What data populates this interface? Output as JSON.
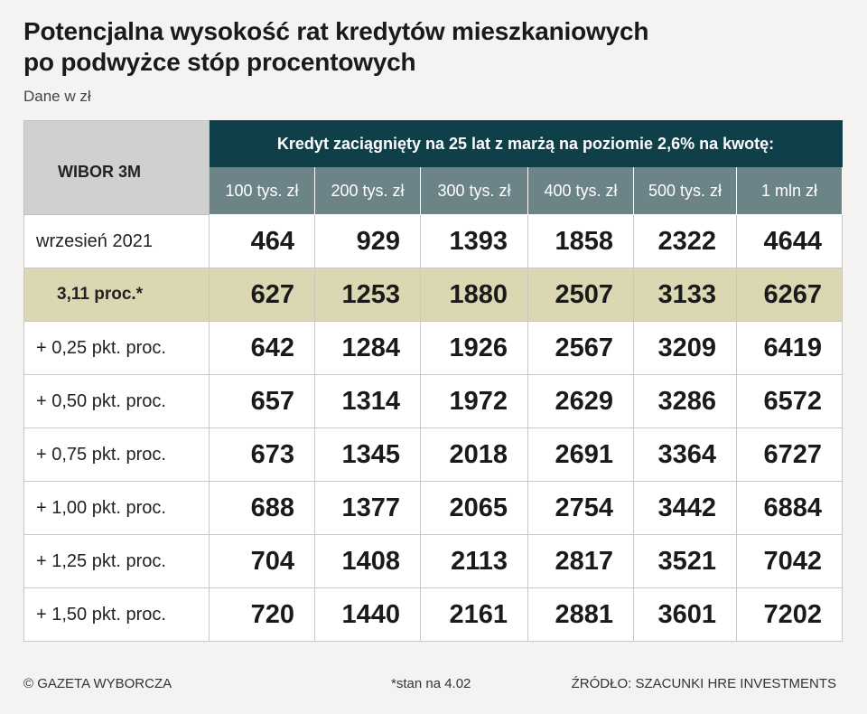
{
  "chart_data": {
    "type": "table",
    "title_lines": [
      "Potencjalna wysokość rat kredytów mieszkaniowych",
      "po podwyżce stóp procentowych"
    ],
    "subtitle": "Dane w zł",
    "corner_label": "WIBOR 3M",
    "group_header": "Kredyt zaciągnięty na 25 lat z marżą na poziomie 2,6% na kwotę:",
    "columns": [
      "100 tys. zł",
      "200 tys. zł",
      "300 tys. zł",
      "400 tys. zł",
      "500 tys. zł",
      "1 mln zł"
    ],
    "rows": [
      {
        "label": "wrzesień 2021",
        "values": [
          464,
          929,
          1393,
          1858,
          2322,
          4644
        ]
      },
      {
        "label": "3,11 proc.*",
        "highlight": true,
        "values": [
          627,
          1253,
          1880,
          2507,
          3133,
          6267
        ]
      },
      {
        "label": "+ 0,25 pkt. proc.",
        "values": [
          642,
          1284,
          1926,
          2567,
          3209,
          6419
        ]
      },
      {
        "label": "+ 0,50 pkt. proc.",
        "values": [
          657,
          1314,
          1972,
          2629,
          3286,
          6572
        ]
      },
      {
        "label": "+ 0,75 pkt. proc.",
        "values": [
          673,
          1345,
          2018,
          2691,
          3364,
          6727
        ]
      },
      {
        "label": "+ 1,00 pkt. proc.",
        "values": [
          688,
          1377,
          2065,
          2754,
          3442,
          6884
        ]
      },
      {
        "label": "+ 1,25 pkt. proc.",
        "values": [
          704,
          1408,
          2113,
          2817,
          3521,
          7042
        ]
      },
      {
        "label": "+ 1,50 pkt. proc.",
        "values": [
          720,
          1440,
          2161,
          2881,
          3601,
          7202
        ]
      }
    ],
    "colors": {
      "group_header_bg": "#0f3f48",
      "column_header_bg": "#6c8488",
      "corner_bg": "#d0d0d0",
      "highlight_row_bg": "#dcd7b3"
    }
  },
  "footer": {
    "copyright": "© GAZETA WYBORCZA",
    "note": "*stan na 4.02",
    "source": "ŹRÓDŁO: SZACUNKI HRE INVESTMENTS"
  }
}
